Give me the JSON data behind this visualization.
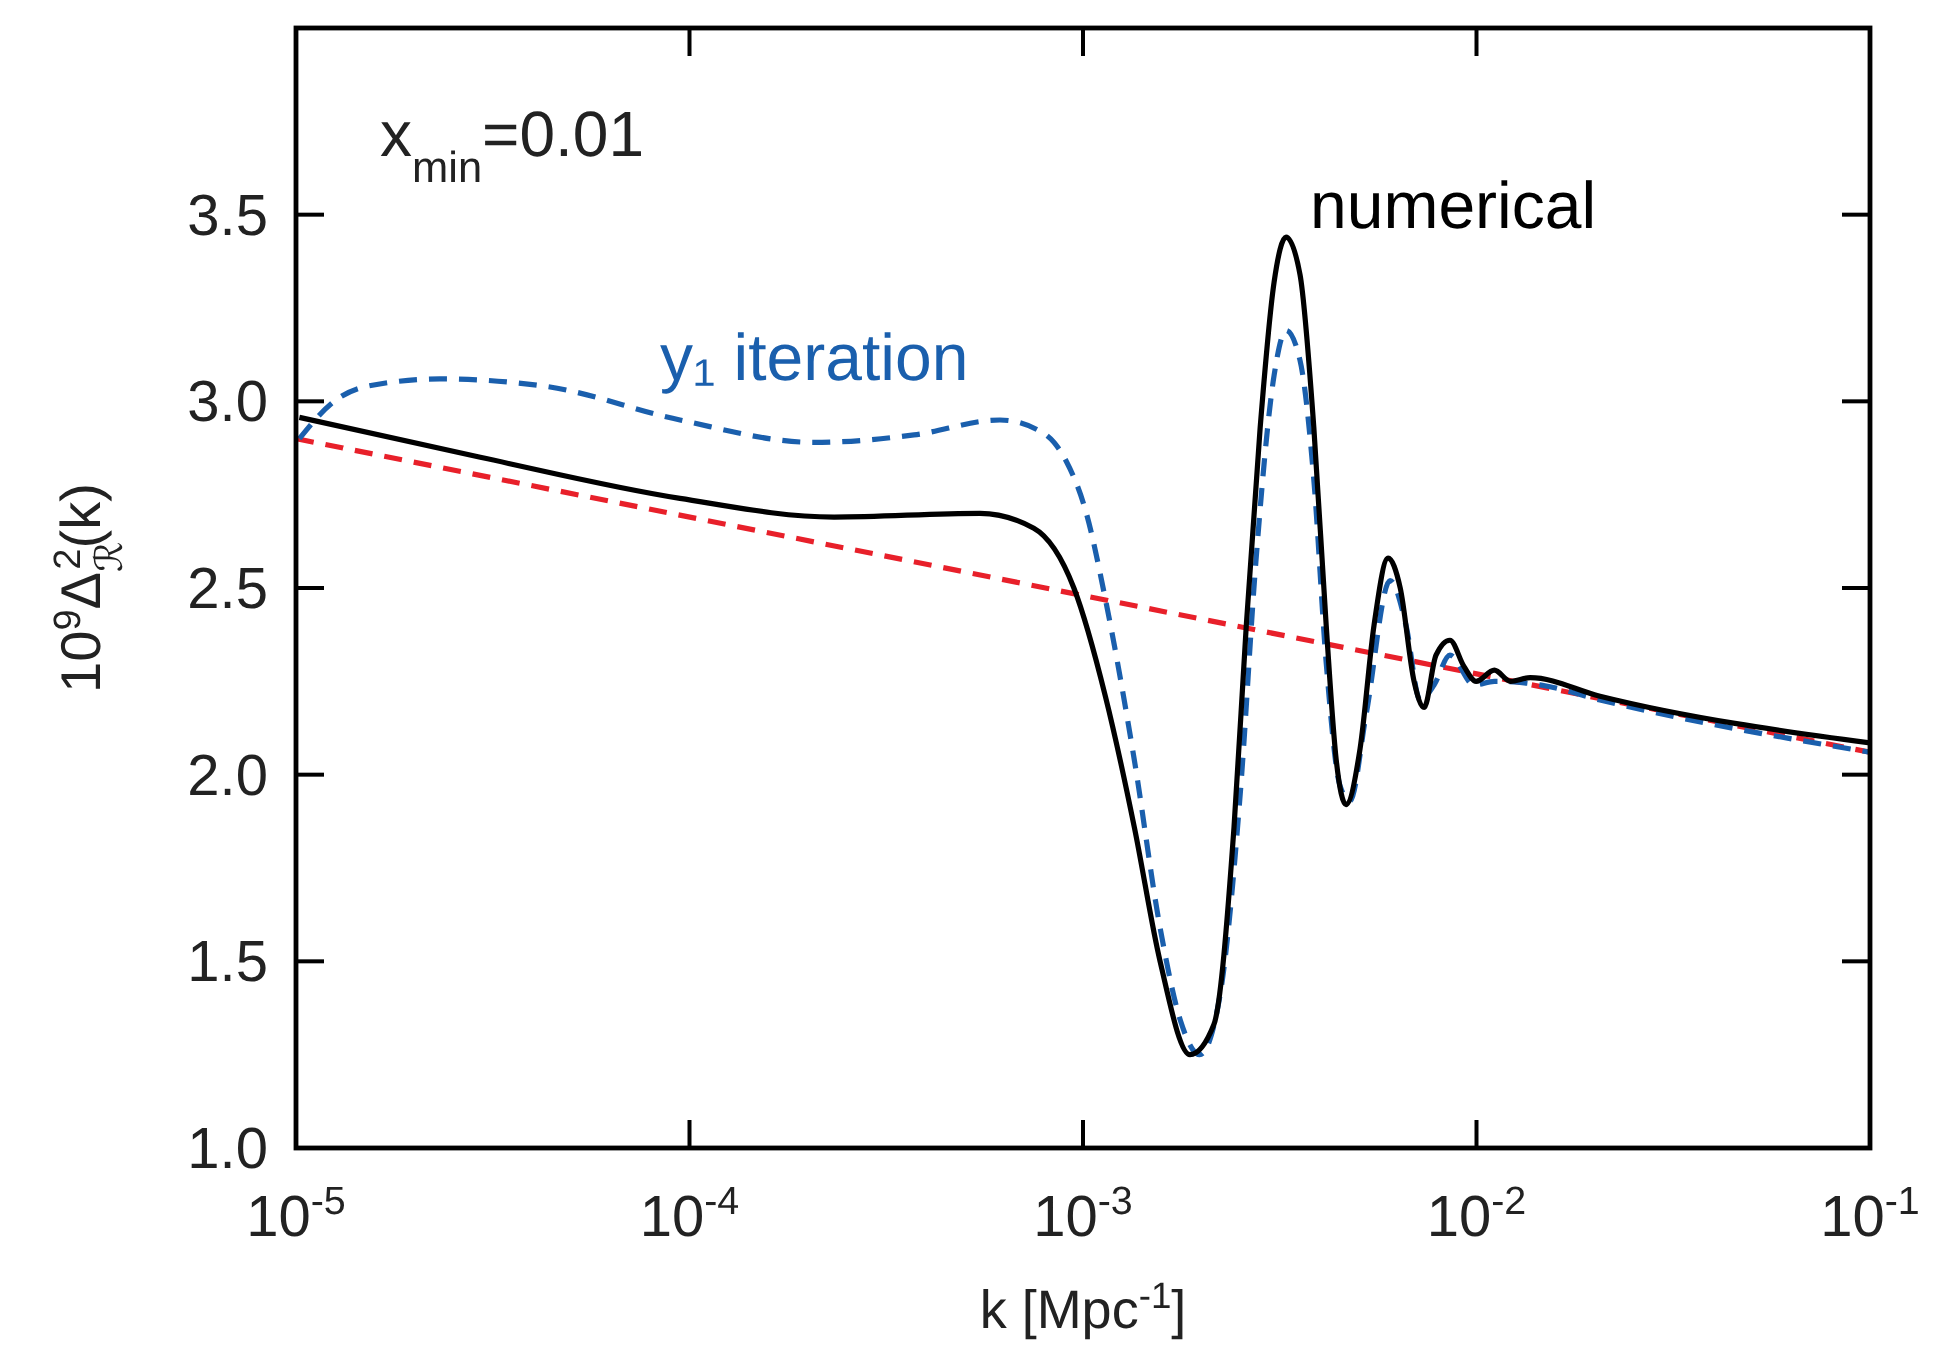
{
  "chart_data": {
    "type": "line",
    "xlabel": "k [Mpc$^{-1}$]",
    "ylabel": "10$^{9}$Δ$_{ℛ}$$^{2}$(k)",
    "log": "x",
    "xlim": [
      1e-05,
      0.1
    ],
    "ylim": [
      1.0,
      4.0
    ],
    "xticks": [
      {
        "value": 1e-05,
        "label": "10$^{-5}$"
      },
      {
        "value": 0.0001,
        "label": "10$^{-4}$"
      },
      {
        "value": 0.001,
        "label": "10$^{-3}$"
      },
      {
        "value": 0.01,
        "label": "10$^{-2}$"
      },
      {
        "value": 0.1,
        "label": "10$^{-1}$"
      }
    ],
    "yticks": [
      {
        "value": 1.0,
        "label": "1.0"
      },
      {
        "value": 1.5,
        "label": "1.5"
      },
      {
        "value": 2.0,
        "label": "2.0"
      },
      {
        "value": 2.5,
        "label": "2.5"
      },
      {
        "value": 3.0,
        "label": "3.0"
      },
      {
        "value": 3.5,
        "label": "3.5"
      }
    ],
    "grid": false,
    "legend": false,
    "marker": "none",
    "annotations": [
      "x$_{min}$=0.01"
    ],
    "series": [
      {
        "color": "#e8202a",
        "line_style": "dashed",
        "x": [
          1e-05,
          0.001,
          0.1
        ],
        "values": [
          2.9,
          2.48,
          2.06
        ]
      },
      {
        "name": "y₁ iteration",
        "color": "#1a5fad",
        "line_style": "dashed",
        "x": [
          1.02e-05,
          1.25e-05,
          1.51e-05,
          2.32e-05,
          4.32e-05,
          9.46e-05,
          0.000207,
          0.000372,
          0.000615,
          0.000778,
          0.000844,
          0.000906,
          0.00102,
          0.00114,
          0.00135,
          0.00157,
          0.00177,
          0.00198,
          0.00223,
          0.00251,
          0.00275,
          0.00306,
          0.00328,
          0.00356,
          0.00386,
          0.00415,
          0.0045,
          0.00477,
          0.00524,
          0.00603,
          0.00662,
          0.00719,
          0.0078,
          0.00856,
          0.00986,
          0.0111,
          0.0146,
          0.0206,
          0.1
        ],
        "values": [
          2.9,
          3.0,
          3.04,
          3.06,
          3.04,
          2.95,
          2.89,
          2.91,
          2.95,
          2.92,
          2.89,
          2.84,
          2.7,
          2.47,
          2.04,
          1.59,
          1.34,
          1.25,
          1.41,
          1.95,
          2.57,
          3.07,
          3.19,
          3.11,
          2.79,
          2.3,
          1.97,
          1.93,
          2.16,
          2.52,
          2.4,
          2.2,
          2.24,
          2.32,
          2.24,
          2.25,
          2.24,
          2.2,
          2.06
        ]
      },
      {
        "name": "numerical",
        "color": "#000000",
        "line_style": "solid",
        "x": [
          1.02e-05,
          2.94e-05,
          9.46e-05,
          0.000233,
          0.000547,
          0.00075,
          0.000948,
          0.00114,
          0.00135,
          0.00157,
          0.00187,
          0.00215,
          0.00242,
          0.0026,
          0.00282,
          0.00306,
          0.00328,
          0.00356,
          0.00386,
          0.00415,
          0.0044,
          0.00466,
          0.00506,
          0.00549,
          0.00596,
          0.0064,
          0.00694,
          0.00736,
          0.00789,
          0.00856,
          0.00929,
          0.00998,
          0.0111,
          0.0122,
          0.0137,
          0.0206,
          0.1
        ],
        "values": [
          2.957,
          2.85,
          2.74,
          2.69,
          2.7,
          2.66,
          2.5,
          2.21,
          1.86,
          1.5,
          1.25,
          1.33,
          1.86,
          2.4,
          2.93,
          3.32,
          3.44,
          3.34,
          2.93,
          2.4,
          2.04,
          1.92,
          2.07,
          2.4,
          2.58,
          2.5,
          2.25,
          2.18,
          2.32,
          2.36,
          2.29,
          2.25,
          2.28,
          2.25,
          2.26,
          2.21,
          2.085
        ]
      }
    ]
  }
}
